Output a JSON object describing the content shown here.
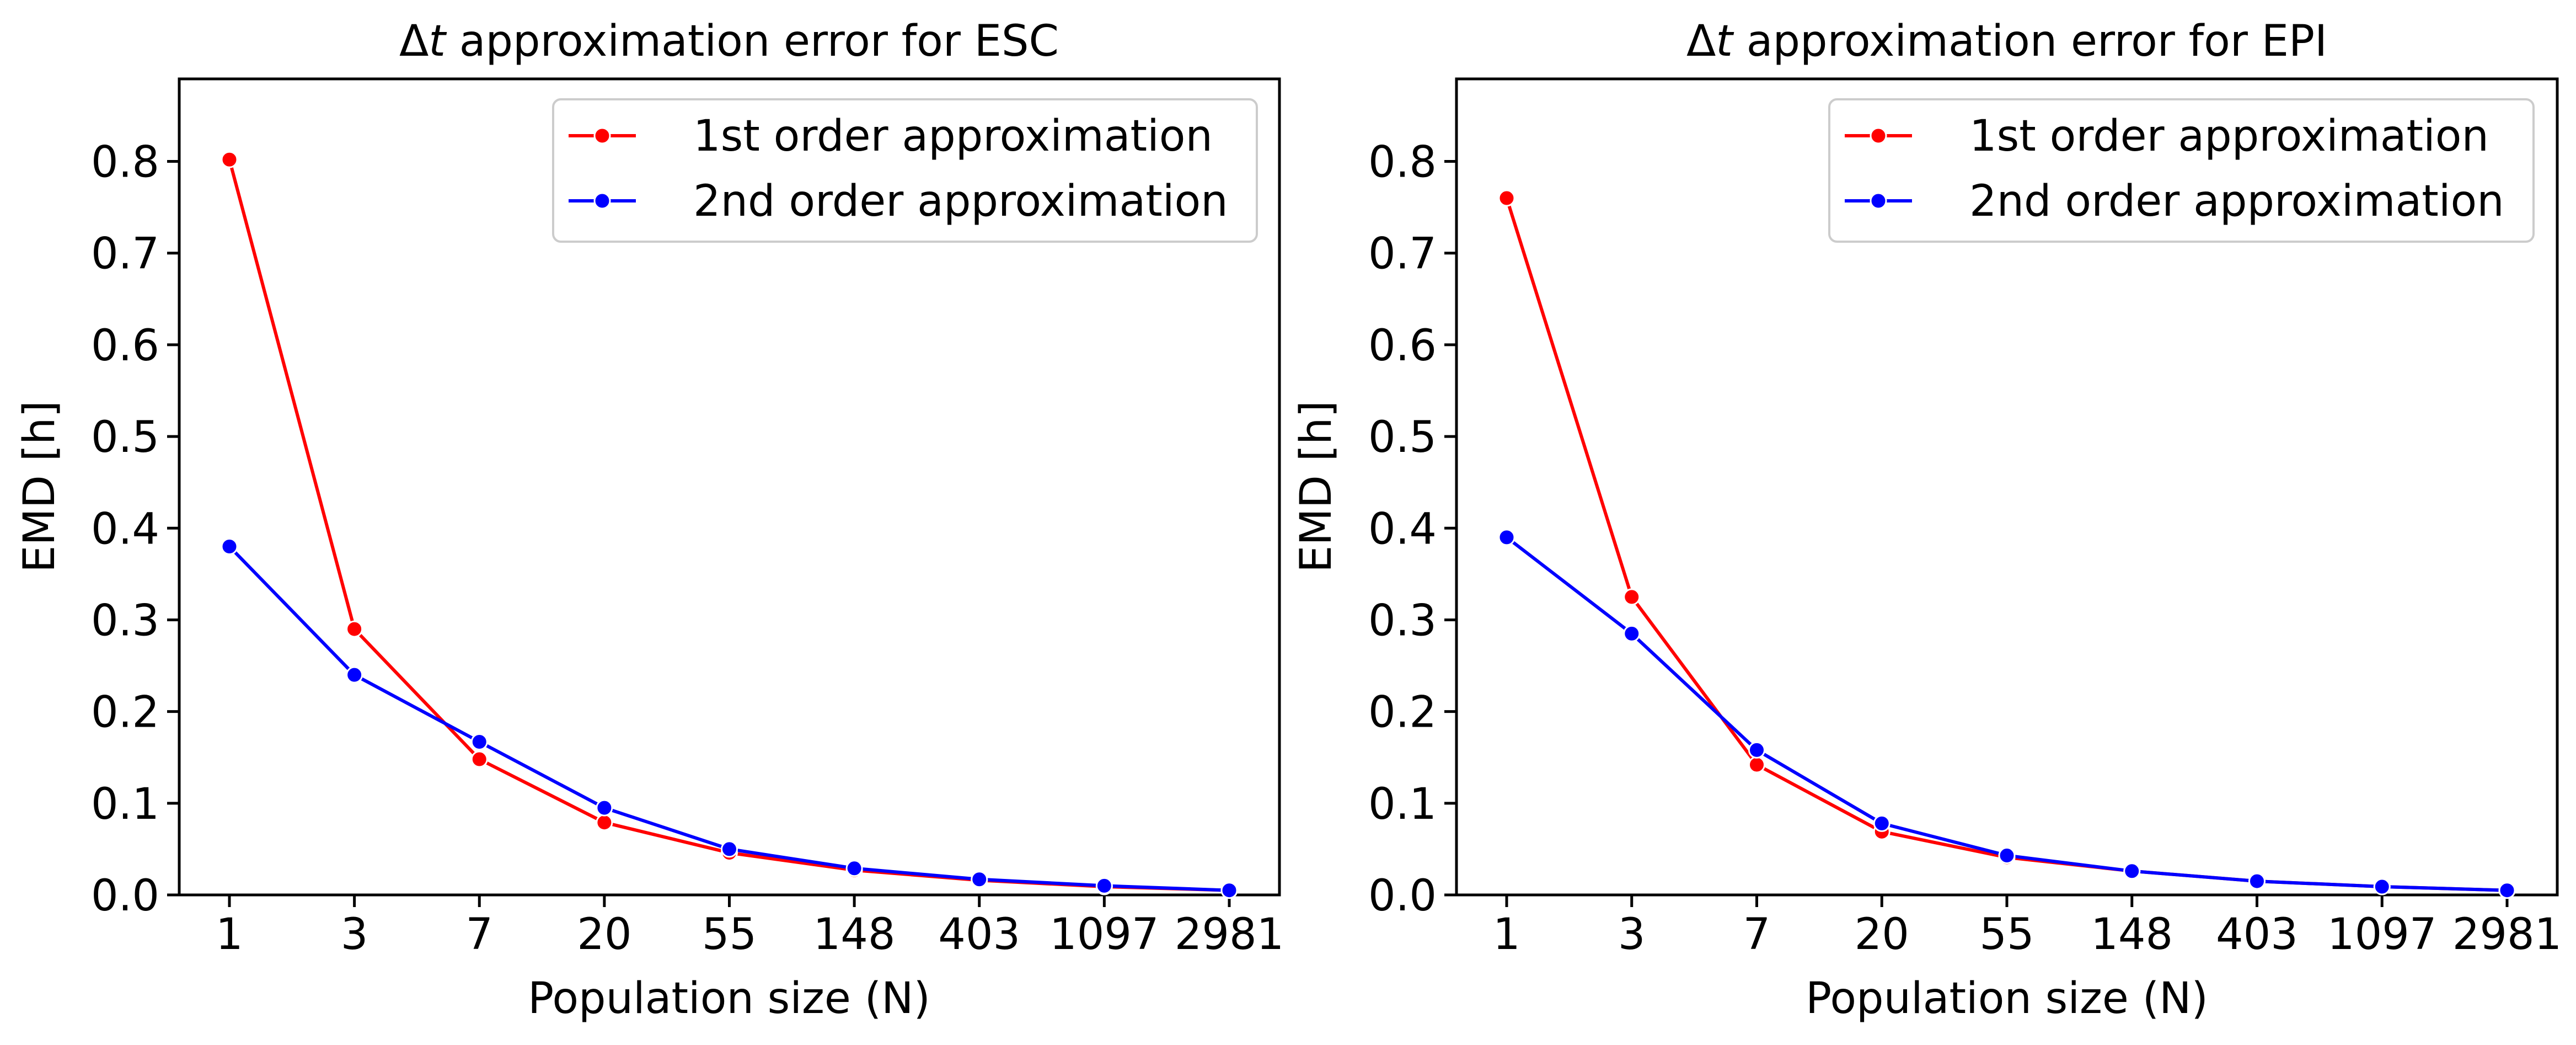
{
  "chart_data": [
    {
      "type": "line",
      "title_prefix": "Δ",
      "title_var": "t",
      "title_rest": " approximation error for ESC",
      "xlabel": "Population size (N)",
      "ylabel": "EMD [h]",
      "categories": [
        "1",
        "3",
        "7",
        "20",
        "55",
        "148",
        "403",
        "1097",
        "2981"
      ],
      "ylim": [
        0,
        0.89
      ],
      "yticks": [
        "0.0",
        "0.1",
        "0.2",
        "0.3",
        "0.4",
        "0.5",
        "0.6",
        "0.7",
        "0.8"
      ],
      "legend_position": "upper right",
      "grid": false,
      "series": [
        {
          "name": "1st order approximation",
          "color": "#ff0000",
          "values": [
            0.802,
            0.29,
            0.148,
            0.079,
            0.046,
            0.027,
            0.016,
            0.009,
            0.005
          ]
        },
        {
          "name": "2nd order approximation",
          "color": "#0000ff",
          "values": [
            0.38,
            0.24,
            0.167,
            0.095,
            0.05,
            0.029,
            0.017,
            0.01,
            0.005
          ]
        }
      ]
    },
    {
      "type": "line",
      "title_prefix": "Δ",
      "title_var": "t",
      "title_rest": " approximation error for EPI",
      "xlabel": "Population size (N)",
      "ylabel": "EMD [h]",
      "categories": [
        "1",
        "3",
        "7",
        "20",
        "55",
        "148",
        "403",
        "1097",
        "2981"
      ],
      "ylim": [
        0,
        0.89
      ],
      "yticks": [
        "0.0",
        "0.1",
        "0.2",
        "0.3",
        "0.4",
        "0.5",
        "0.6",
        "0.7",
        "0.8"
      ],
      "legend_position": "upper right",
      "grid": false,
      "series": [
        {
          "name": "1st order approximation",
          "color": "#ff0000",
          "values": [
            0.76,
            0.325,
            0.142,
            0.069,
            0.041,
            0.026,
            0.015,
            0.009,
            0.005
          ]
        },
        {
          "name": "2nd order approximation",
          "color": "#0000ff",
          "values": [
            0.39,
            0.285,
            0.158,
            0.078,
            0.043,
            0.026,
            0.015,
            0.009,
            0.005
          ]
        }
      ]
    }
  ]
}
